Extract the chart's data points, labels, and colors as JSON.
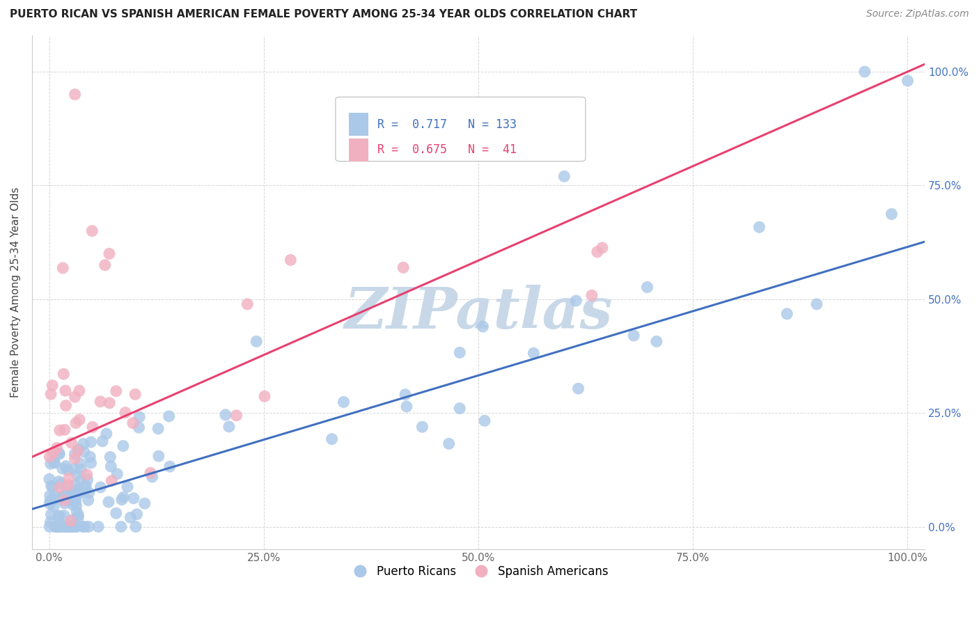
{
  "title": "PUERTO RICAN VS SPANISH AMERICAN FEMALE POVERTY AMONG 25-34 YEAR OLDS CORRELATION CHART",
  "source": "Source: ZipAtlas.com",
  "ylabel": "Female Poverty Among 25-34 Year Olds",
  "xlim": [
    -0.02,
    1.02
  ],
  "ylim": [
    -0.05,
    1.08
  ],
  "xticks": [
    0.0,
    0.25,
    0.5,
    0.75,
    1.0
  ],
  "yticks": [
    0.0,
    0.25,
    0.5,
    0.75,
    1.0
  ],
  "xtick_labels": [
    "0.0%",
    "25.0%",
    "50.0%",
    "75.0%",
    "100.0%"
  ],
  "right_ytick_labels": [
    "0.0%",
    "25.0%",
    "50.0%",
    "75.0%",
    "100.0%"
  ],
  "blue_color": "#aac8e8",
  "pink_color": "#f0b0c0",
  "blue_line_color": "#4070c0",
  "pink_line_color": "#e84070",
  "legend_blue_r": "0.717",
  "legend_blue_n": "133",
  "legend_pink_r": "0.675",
  "legend_pink_n": "41",
  "watermark": "ZIPatlas",
  "watermark_color": "#c8d8e8",
  "blue_slope": 0.565,
  "blue_intercept": 0.05,
  "pink_slope": 0.83,
  "pink_intercept": 0.17,
  "title_fontsize": 11,
  "source_fontsize": 10,
  "axis_label_fontsize": 11,
  "tick_fontsize": 11,
  "right_tick_color": "#4472c4"
}
